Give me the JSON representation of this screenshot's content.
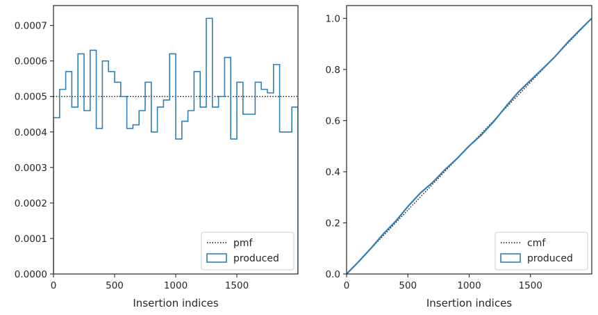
{
  "chart_data": [
    {
      "type": "step",
      "xlabel": "Insertion indices",
      "ylabel": "",
      "xlim": [
        0,
        2000
      ],
      "ylim": [
        0,
        0.000756
      ],
      "xticks": [
        0,
        500,
        1000,
        1500
      ],
      "xtick_labels": [
        "0",
        "500",
        "1000",
        "1500"
      ],
      "yticks": [
        0,
        0.0001,
        0.0002,
        0.0003,
        0.0004,
        0.0005,
        0.0006,
        0.0007
      ],
      "ytick_labels": [
        "0.0000",
        "0.0001",
        "0.0002",
        "0.0003",
        "0.0004",
        "0.0005",
        "0.0006",
        "0.0007"
      ],
      "legend_position": "lower-right",
      "grid": false,
      "series": [
        {
          "name": "pmf",
          "style": "dotted",
          "color": "#000000",
          "x": [
            0,
            2000
          ],
          "y": [
            0.0005,
            0.0005
          ]
        },
        {
          "name": "produced",
          "style": "step-histogram",
          "color": "#2f7fb5",
          "bin_edges": [
            0,
            50,
            100,
            150,
            200,
            250,
            300,
            350,
            400,
            450,
            500,
            550,
            600,
            650,
            700,
            750,
            800,
            850,
            900,
            950,
            1000,
            1050,
            1100,
            1150,
            1200,
            1250,
            1300,
            1350,
            1400,
            1450,
            1500,
            1550,
            1600,
            1650,
            1700,
            1750,
            1800,
            1850,
            1900,
            1950,
            2000
          ],
          "values": [
            0.00044,
            0.00052,
            0.00057,
            0.00047,
            0.00062,
            0.00046,
            0.00063,
            0.00041,
            0.0006,
            0.00057,
            0.00054,
            0.0005,
            0.00041,
            0.00042,
            0.00046,
            0.00054,
            0.0004,
            0.00047,
            0.00049,
            0.00062,
            0.00038,
            0.00043,
            0.00046,
            0.00057,
            0.00047,
            0.00072,
            0.00047,
            0.0005,
            0.00061,
            0.00038,
            0.00054,
            0.00045,
            0.00045,
            0.00054,
            0.00052,
            0.00051,
            0.00059,
            0.0004,
            0.0004,
            0.00047
          ]
        }
      ]
    },
    {
      "type": "line",
      "xlabel": "Insertion indices",
      "ylabel": "",
      "xlim": [
        0,
        2000
      ],
      "ylim": [
        0,
        1.05
      ],
      "xticks": [
        0,
        500,
        1000,
        1500
      ],
      "xtick_labels": [
        "0",
        "500",
        "1000",
        "1500"
      ],
      "yticks": [
        0,
        0.2,
        0.4,
        0.6,
        0.8,
        1.0
      ],
      "ytick_labels": [
        "0.0",
        "0.2",
        "0.4",
        "0.6",
        "0.8",
        "1.0"
      ],
      "legend_position": "lower-right",
      "grid": false,
      "series": [
        {
          "name": "cmf",
          "style": "dotted",
          "color": "#000000",
          "x": [
            0,
            2000
          ],
          "y": [
            0,
            1
          ]
        },
        {
          "name": "produced",
          "style": "step-cumulative",
          "color": "#2f7fb5",
          "x": [
            0,
            100,
            200,
            300,
            400,
            500,
            600,
            700,
            800,
            900,
            1000,
            1100,
            1200,
            1300,
            1400,
            1500,
            1600,
            1700,
            1800,
            1900,
            2000
          ],
          "y": [
            0,
            0.049,
            0.101,
            0.157,
            0.206,
            0.264,
            0.316,
            0.357,
            0.407,
            0.451,
            0.501,
            0.544,
            0.596,
            0.655,
            0.711,
            0.757,
            0.803,
            0.85,
            0.904,
            0.953,
            1.0
          ]
        }
      ]
    }
  ]
}
